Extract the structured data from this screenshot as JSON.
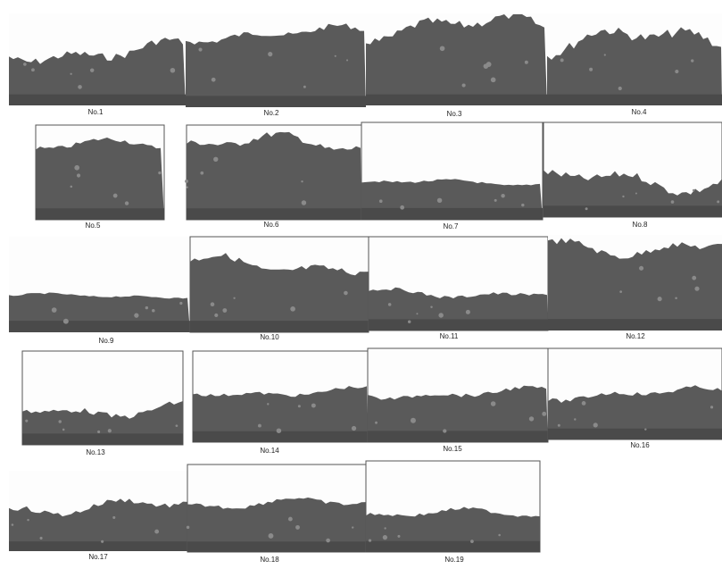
{
  "panels": [
    {
      "label": "No.1"
    },
    {
      "label": "No.2"
    },
    {
      "label": "No.3"
    },
    {
      "label": "No.4"
    },
    {
      "label": "No.5"
    },
    {
      "label": "No.6"
    },
    {
      "label": "No.7"
    },
    {
      "label": "No.8"
    },
    {
      "label": "No.9"
    },
    {
      "label": "No.10"
    },
    {
      "label": "No.11"
    },
    {
      "label": "No.12"
    },
    {
      "label": "No.13"
    },
    {
      "label": "No.14"
    },
    {
      "label": "No.15"
    },
    {
      "label": "No.16"
    },
    {
      "label": "No.17"
    },
    {
      "label": "No.18"
    },
    {
      "label": "No.19"
    }
  ]
}
